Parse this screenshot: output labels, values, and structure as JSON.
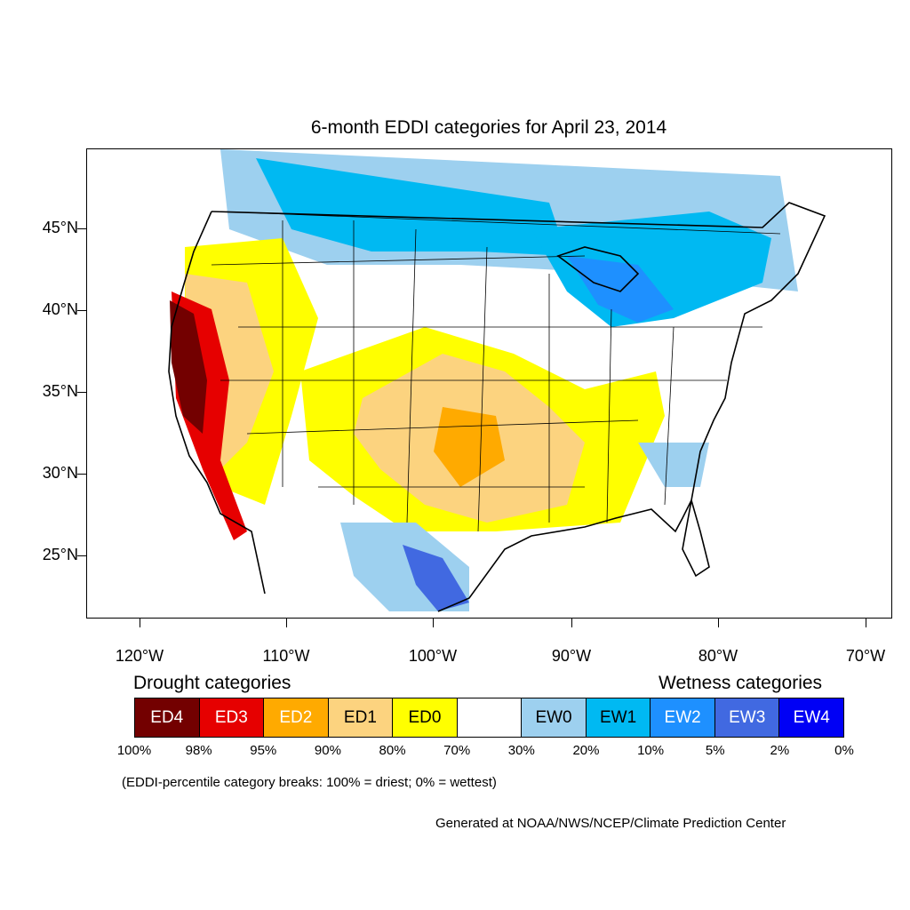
{
  "title": "6-month EDDI categories for April 23, 2014",
  "latitude_labels": [
    "45°N",
    "40°N",
    "35°N",
    "30°N",
    "25°N"
  ],
  "longitude_labels": [
    "120°W",
    "110°W",
    "100°W",
    "90°W",
    "80°W",
    "70°W"
  ],
  "legend": {
    "drought_heading": "Drought categories",
    "wetness_heading": "Wetness categories",
    "categories": [
      {
        "label": "ED4",
        "color": "#730000",
        "text_color": "#ffffff"
      },
      {
        "label": "ED3",
        "color": "#e60000",
        "text_color": "#ffffff"
      },
      {
        "label": "ED2",
        "color": "#ffaa00",
        "text_color": "#ffffff"
      },
      {
        "label": "ED1",
        "color": "#fcd37f",
        "text_color": "#000000"
      },
      {
        "label": "ED0",
        "color": "#ffff00",
        "text_color": "#000000"
      },
      {
        "label": "",
        "color": "#ffffff",
        "text_color": "#000000"
      },
      {
        "label": "EW0",
        "color": "#9dd0ef",
        "text_color": "#000000"
      },
      {
        "label": "EW1",
        "color": "#00b9f2",
        "text_color": "#000000"
      },
      {
        "label": "EW2",
        "color": "#1e90ff",
        "text_color": "#ffffff"
      },
      {
        "label": "EW3",
        "color": "#4169e1",
        "text_color": "#ffffff"
      },
      {
        "label": "EW4",
        "color": "#0000f5",
        "text_color": "#ffffff"
      }
    ],
    "percentiles": [
      "100%",
      "98%",
      "95%",
      "90%",
      "80%",
      "70%",
      "30%",
      "20%",
      "10%",
      "5%",
      "2%",
      "0%"
    ]
  },
  "note": "(EDDI-percentile category breaks: 100% = driest; 0% = wettest)",
  "credit": "Generated at NOAA/NWS/NCEP/Climate Prediction Center"
}
